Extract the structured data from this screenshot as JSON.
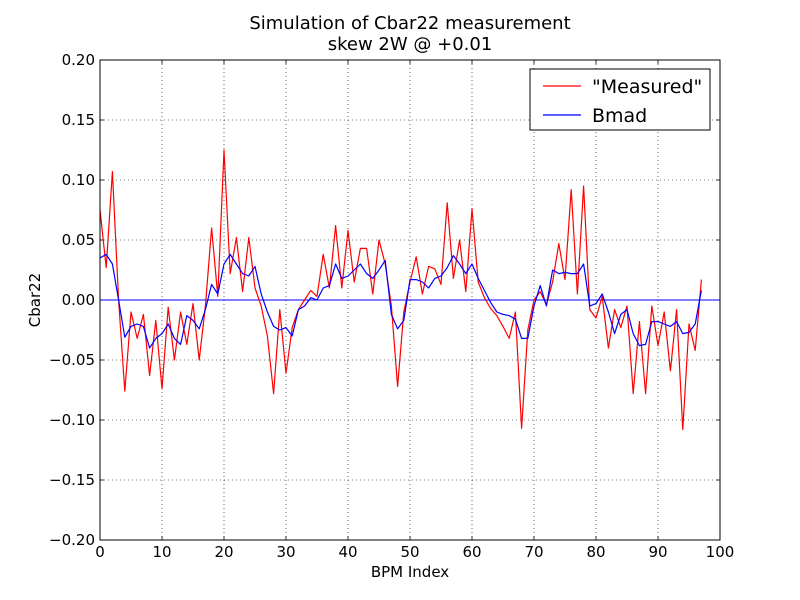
{
  "chart_data": {
    "type": "line",
    "title": "Simulation of Cbar22 measurement",
    "subtitle": "skew 2W @ +0.01",
    "xlabel": "BPM Index",
    "ylabel": "Cbar22",
    "xlim": [
      0,
      100
    ],
    "ylim": [
      -0.2,
      0.2
    ],
    "xticks": [
      0,
      10,
      20,
      30,
      40,
      50,
      60,
      70,
      80,
      90,
      100
    ],
    "xtick_labels": [
      "0",
      "10",
      "20",
      "30",
      "40",
      "50",
      "60",
      "70",
      "80",
      "90",
      "100"
    ],
    "yticks": [
      0.2,
      0.15,
      0.1,
      0.05,
      0.0,
      -0.05,
      -0.1,
      -0.15,
      -0.2
    ],
    "ytick_labels": [
      "0.20",
      "0.15",
      "0.10",
      "0.05",
      "0.00",
      "−0.05",
      "−0.10",
      "−0.15",
      "−0.20"
    ],
    "grid": true,
    "legend": "top-right",
    "zero_line": {
      "y": 0.0,
      "color": "#0000ff"
    },
    "series": [
      {
        "name": "\"Measured\"",
        "color": "#ff0000",
        "x": [
          0,
          1,
          2,
          3,
          4,
          5,
          6,
          7,
          8,
          9,
          10,
          11,
          12,
          13,
          14,
          15,
          16,
          17,
          18,
          19,
          20,
          21,
          22,
          23,
          24,
          25,
          26,
          27,
          28,
          29,
          30,
          31,
          32,
          33,
          34,
          35,
          36,
          37,
          38,
          39,
          40,
          41,
          42,
          43,
          44,
          45,
          46,
          47,
          48,
          49,
          50,
          51,
          52,
          53,
          54,
          55,
          56,
          57,
          58,
          59,
          60,
          61,
          62,
          63,
          64,
          65,
          66,
          67,
          68,
          69,
          70,
          71,
          72,
          73,
          74,
          75,
          76,
          77,
          78,
          79,
          80,
          81,
          82,
          83,
          84,
          85,
          86,
          87,
          88,
          89,
          90,
          91,
          92,
          93,
          94,
          95,
          96,
          97
        ],
        "y": [
          0.075,
          0.027,
          0.107,
          0.0,
          -0.076,
          -0.01,
          -0.032,
          -0.012,
          -0.063,
          -0.017,
          -0.074,
          -0.006,
          -0.05,
          -0.01,
          -0.037,
          -0.003,
          -0.05,
          -0.005,
          0.06,
          0.003,
          0.125,
          0.022,
          0.052,
          0.007,
          0.052,
          0.01,
          -0.005,
          -0.03,
          -0.078,
          -0.008,
          -0.061,
          -0.023,
          -0.008,
          0.0,
          0.008,
          0.003,
          0.038,
          0.01,
          0.062,
          0.01,
          0.058,
          0.015,
          0.043,
          0.043,
          0.005,
          0.05,
          0.03,
          -0.005,
          -0.072,
          -0.01,
          0.015,
          0.036,
          0.005,
          0.028,
          0.026,
          0.013,
          0.081,
          0.018,
          0.05,
          0.007,
          0.076,
          0.015,
          0.002,
          -0.007,
          -0.013,
          -0.022,
          -0.032,
          -0.01,
          -0.107,
          -0.025,
          0.0,
          0.007,
          -0.004,
          0.015,
          0.047,
          0.017,
          0.092,
          0.005,
          0.095,
          -0.008,
          -0.015,
          0.003,
          -0.04,
          -0.008,
          -0.023,
          -0.005,
          -0.078,
          -0.018,
          -0.078,
          -0.005,
          -0.038,
          -0.01,
          -0.059,
          -0.008,
          -0.108,
          -0.02,
          -0.042,
          0.017
        ]
      },
      {
        "name": "Bmad",
        "color": "#0000ff",
        "x": [
          0,
          1,
          2,
          3,
          4,
          5,
          6,
          7,
          8,
          9,
          10,
          11,
          12,
          13,
          14,
          15,
          16,
          17,
          18,
          19,
          20,
          21,
          22,
          23,
          24,
          25,
          26,
          27,
          28,
          29,
          30,
          31,
          32,
          33,
          34,
          35,
          36,
          37,
          38,
          39,
          40,
          41,
          42,
          43,
          44,
          45,
          46,
          47,
          48,
          49,
          50,
          51,
          52,
          53,
          54,
          55,
          56,
          57,
          58,
          59,
          60,
          61,
          62,
          63,
          64,
          65,
          66,
          67,
          68,
          69,
          70,
          71,
          72,
          73,
          74,
          75,
          76,
          77,
          78,
          79,
          80,
          81,
          82,
          83,
          84,
          85,
          86,
          87,
          88,
          89,
          90,
          91,
          92,
          93,
          94,
          95,
          96,
          97
        ],
        "y": [
          0.035,
          0.038,
          0.03,
          0.0,
          -0.031,
          -0.022,
          -0.02,
          -0.022,
          -0.04,
          -0.032,
          -0.028,
          -0.02,
          -0.032,
          -0.037,
          -0.013,
          -0.017,
          -0.024,
          -0.008,
          0.013,
          0.005,
          0.03,
          0.038,
          0.03,
          0.022,
          0.02,
          0.028,
          0.005,
          -0.01,
          -0.022,
          -0.025,
          -0.023,
          -0.03,
          -0.008,
          -0.005,
          0.002,
          0.0,
          0.01,
          0.012,
          0.03,
          0.018,
          0.02,
          0.025,
          0.03,
          0.022,
          0.018,
          0.025,
          0.033,
          -0.012,
          -0.024,
          -0.017,
          0.017,
          0.017,
          0.015,
          0.01,
          0.018,
          0.02,
          0.027,
          0.037,
          0.03,
          0.022,
          0.03,
          0.018,
          0.008,
          -0.002,
          -0.01,
          -0.012,
          -0.013,
          -0.016,
          -0.032,
          -0.032,
          -0.005,
          0.012,
          -0.005,
          0.025,
          0.022,
          0.023,
          0.022,
          0.022,
          0.03,
          -0.005,
          -0.003,
          0.005,
          -0.01,
          -0.028,
          -0.012,
          -0.008,
          -0.028,
          -0.038,
          -0.037,
          -0.018,
          -0.018,
          -0.02,
          -0.022,
          -0.018,
          -0.028,
          -0.027,
          -0.02,
          0.008
        ]
      }
    ]
  }
}
